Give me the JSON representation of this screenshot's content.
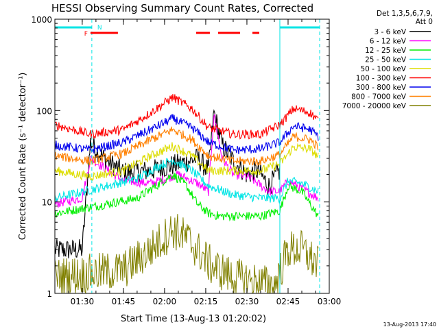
{
  "chart_data": {
    "type": "line",
    "title": "HESSI Observing Summary Count Rates, Corrected",
    "xlabel": "Start Time (13-Aug-13 01:20:02)",
    "ylabel": "Corrected Count Rate (s⁻¹ detector⁻¹)",
    "y_scale": "log",
    "ylim": [
      1,
      1000
    ],
    "xlim": [
      "01:20:02",
      "03:00:00"
    ],
    "x_ticks": [
      "01:30",
      "01:45",
      "02:00",
      "02:15",
      "02:30",
      "02:45",
      "03:00"
    ],
    "y_ticks": [
      "1",
      "10",
      "100",
      "1000"
    ],
    "legend_title": [
      "Det 1,3,5,6,7,9,",
      "Att 0"
    ],
    "legend_position": "right",
    "footer": "13-Aug-2013 17:40",
    "markers": {
      "flare_label": "F",
      "night_label": "N"
    },
    "night_intervals": [
      [
        "01:20:02",
        "01:33:30"
      ],
      [
        "02:42:00",
        "02:56:30"
      ]
    ],
    "flare_bars": [
      [
        "01:33:00",
        "01:43:00"
      ],
      [
        "02:11:30",
        "02:16:30"
      ],
      [
        "02:19:30",
        "02:27:30"
      ],
      [
        "02:32:00",
        "02:34:30"
      ]
    ],
    "series": [
      {
        "name": "3 - 6 keV",
        "color": "#000000",
        "x": [
          "01:20",
          "01:30",
          "01:33",
          "01:38",
          "01:45",
          "01:55",
          "02:05",
          "02:12",
          "02:16",
          "02:18",
          "02:21",
          "02:25",
          "02:30",
          "02:34",
          "02:38",
          "02:42"
        ],
        "y": [
          3,
          3,
          45,
          30,
          21,
          22,
          26,
          30,
          22,
          95,
          42,
          28,
          20,
          22,
          15,
          22
        ]
      },
      {
        "name": "6 - 12 keV",
        "color": "#ff00ff",
        "x": [
          "01:20",
          "01:30",
          "01:33",
          "01:45",
          "01:55",
          "02:05",
          "02:12",
          "02:16",
          "02:18",
          "02:21",
          "02:25",
          "02:30",
          "02:34",
          "02:38",
          "02:42",
          "02:45",
          "02:50",
          "02:56"
        ],
        "y": [
          9.5,
          11,
          30,
          17,
          16,
          20,
          16,
          13,
          90,
          30,
          20,
          19,
          16,
          13,
          13,
          17,
          14,
          11
        ]
      },
      {
        "name": "12 - 25 keV",
        "color": "#00ee00",
        "x": [
          "01:20",
          "01:35",
          "01:50",
          "01:57",
          "02:03",
          "02:08",
          "02:12",
          "02:16",
          "02:20",
          "02:25",
          "02:30",
          "02:35",
          "02:42",
          "02:45",
          "02:50",
          "02:56"
        ],
        "y": [
          7.5,
          9,
          11,
          15,
          20,
          15,
          9.5,
          7.5,
          7,
          7,
          7,
          7,
          8,
          15,
          13,
          7
        ]
      },
      {
        "name": "25 - 50 keV",
        "color": "#00e5e5",
        "x": [
          "01:20",
          "01:35",
          "01:50",
          "01:57",
          "02:03",
          "02:10",
          "02:16",
          "02:25",
          "02:35",
          "02:42",
          "02:45",
          "02:50",
          "02:56"
        ],
        "y": [
          11,
          14,
          18,
          24,
          29,
          22,
          15,
          12,
          11,
          11,
          17,
          16,
          13
        ]
      },
      {
        "name": "50 - 100 keV",
        "color": "#dddd00",
        "x": [
          "01:20",
          "01:33",
          "01:45",
          "01:55",
          "02:03",
          "02:10",
          "02:16",
          "02:25",
          "02:35",
          "02:42",
          "02:47",
          "02:53",
          "02:56"
        ],
        "y": [
          22,
          19,
          22,
          32,
          41,
          32,
          22,
          22,
          22,
          26,
          40,
          38,
          31
        ]
      },
      {
        "name": "100 - 300 keV",
        "color": "#ff0000",
        "x": [
          "01:20",
          "01:33",
          "01:45",
          "01:55",
          "02:03",
          "02:10",
          "02:16",
          "02:25",
          "02:35",
          "02:42",
          "02:47",
          "02:53",
          "02:56"
        ],
        "y": [
          70,
          55,
          62,
          95,
          140,
          105,
          65,
          55,
          55,
          70,
          105,
          95,
          78
        ]
      },
      {
        "name": "300 - 800 keV",
        "color": "#0000ee",
        "x": [
          "01:20",
          "01:33",
          "01:45",
          "01:55",
          "02:03",
          "02:10",
          "02:16",
          "02:25",
          "02:35",
          "02:42",
          "02:47",
          "02:53",
          "02:56"
        ],
        "y": [
          42,
          37,
          45,
          62,
          82,
          65,
          45,
          37,
          38,
          45,
          68,
          62,
          52
        ]
      },
      {
        "name": "800 - 7000 keV",
        "color": "#ff8000",
        "x": [
          "01:20",
          "01:33",
          "01:45",
          "01:55",
          "02:03",
          "02:10",
          "02:16",
          "02:25",
          "02:35",
          "02:42",
          "02:47",
          "02:53",
          "02:56"
        ],
        "y": [
          32,
          28,
          34,
          48,
          62,
          48,
          32,
          28,
          28,
          33,
          52,
          48,
          40
        ]
      },
      {
        "name": "7000 - 20000 keV",
        "color": "#808000",
        "x": [
          "01:20",
          "01:45",
          "01:55",
          "02:03",
          "02:08",
          "02:12",
          "02:17",
          "02:25",
          "02:40",
          "02:45",
          "02:50",
          "02:56"
        ],
        "y": [
          1.5,
          1.8,
          3,
          5,
          4,
          3,
          2,
          1.5,
          1.2,
          3,
          3,
          2
        ]
      }
    ]
  }
}
